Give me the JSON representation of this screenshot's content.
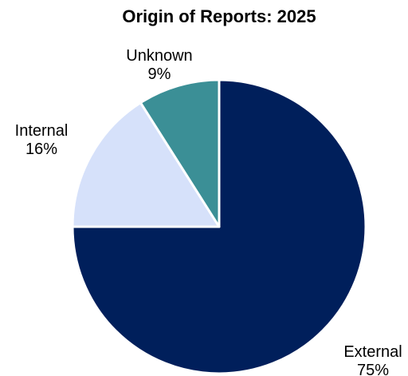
{
  "chart_data": {
    "type": "pie",
    "title": "Origin of Reports: 2025",
    "slices": [
      {
        "name": "External",
        "value": 75,
        "label": "75%",
        "color": "#001f5b"
      },
      {
        "name": "Internal",
        "value": 16,
        "label": "16%",
        "color": "#d6e1fa"
      },
      {
        "name": "Unknown",
        "value": 9,
        "label": "9%",
        "color": "#3b8f96"
      }
    ],
    "start": "12 o'clock",
    "direction": "clockwise",
    "legend": "none"
  }
}
